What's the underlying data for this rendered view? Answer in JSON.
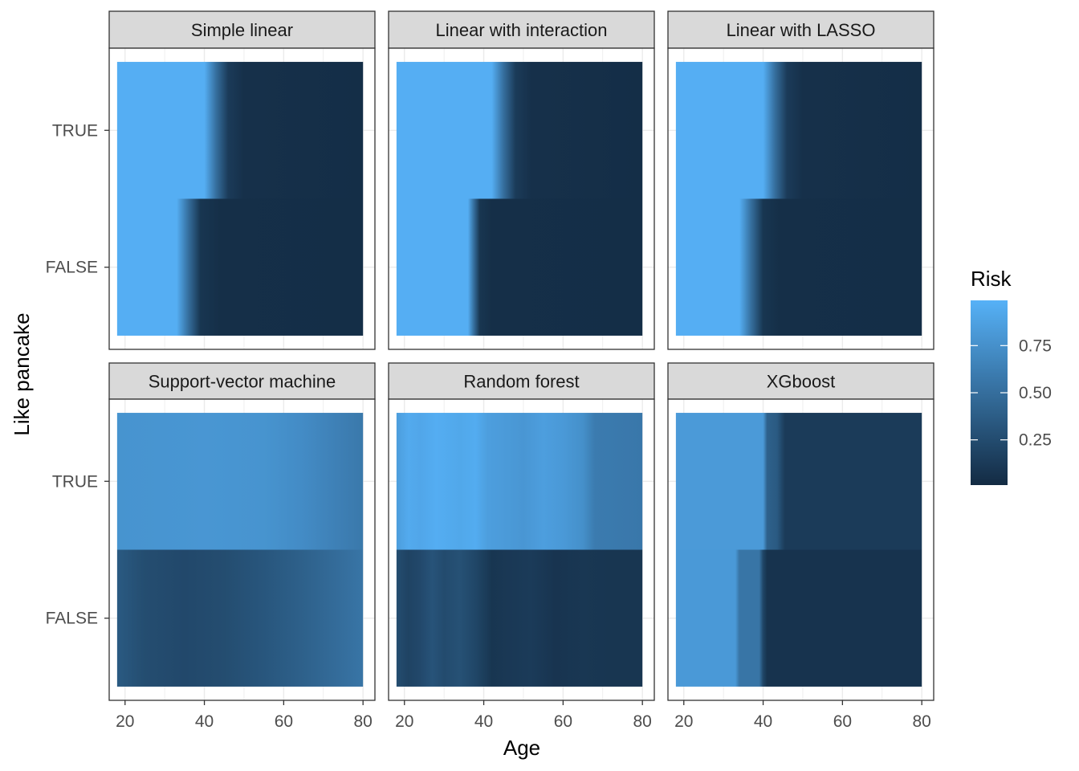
{
  "chart_data": {
    "type": "heatmap",
    "xlabel": "Age",
    "ylabel": "Like pancake",
    "xlim": [
      16,
      83
    ],
    "x_ticks": [
      20,
      40,
      60,
      80
    ],
    "y_categories": [
      "FALSE",
      "TRUE"
    ],
    "x_range": [
      18,
      80
    ],
    "grid": true,
    "legend": {
      "title": "Risk",
      "position": "right",
      "range": [
        0.0,
        1.0
      ],
      "ticks": [
        0.25,
        0.5,
        0.75
      ],
      "tick_labels": [
        "0.25",
        "0.50",
        "0.75"
      ],
      "low_color": "#132B43",
      "high_color": "#56B1F7"
    },
    "panels": [
      {
        "title": "Simple linear",
        "rows": {
          "TRUE": [
            [
              18,
              0.98
            ],
            [
              40,
              0.98
            ],
            [
              43,
              0.5
            ],
            [
              46,
              0.12
            ],
            [
              50,
              0.04
            ],
            [
              80,
              0.02
            ]
          ],
          "FALSE": [
            [
              18,
              0.98
            ],
            [
              33,
              0.98
            ],
            [
              36,
              0.5
            ],
            [
              39,
              0.08
            ],
            [
              44,
              0.03
            ],
            [
              80,
              0.02
            ]
          ]
        }
      },
      {
        "title": "Linear with interaction",
        "rows": {
          "TRUE": [
            [
              18,
              0.98
            ],
            [
              42,
              0.98
            ],
            [
              45,
              0.5
            ],
            [
              48,
              0.12
            ],
            [
              52,
              0.04
            ],
            [
              80,
              0.02
            ]
          ],
          "FALSE": [
            [
              18,
              0.98
            ],
            [
              36,
              0.98
            ],
            [
              37.5,
              0.5
            ],
            [
              39,
              0.08
            ],
            [
              42,
              0.03
            ],
            [
              80,
              0.02
            ]
          ]
        }
      },
      {
        "title": "Linear with LASSO",
        "rows": {
          "TRUE": [
            [
              18,
              0.98
            ],
            [
              40,
              0.98
            ],
            [
              43,
              0.5
            ],
            [
              46,
              0.12
            ],
            [
              50,
              0.04
            ],
            [
              80,
              0.02
            ]
          ],
          "FALSE": [
            [
              18,
              0.98
            ],
            [
              34,
              0.98
            ],
            [
              37,
              0.5
            ],
            [
              40,
              0.08
            ],
            [
              44,
              0.03
            ],
            [
              80,
              0.02
            ]
          ]
        }
      },
      {
        "title": "Support-vector machine",
        "rows": {
          "TRUE": [
            [
              18,
              0.78
            ],
            [
              40,
              0.8
            ],
            [
              55,
              0.78
            ],
            [
              65,
              0.72
            ],
            [
              75,
              0.62
            ],
            [
              80,
              0.58
            ]
          ],
          "FALSE": [
            [
              18,
              0.35
            ],
            [
              25,
              0.25
            ],
            [
              35,
              0.22
            ],
            [
              45,
              0.25
            ],
            [
              55,
              0.32
            ],
            [
              65,
              0.4
            ],
            [
              75,
              0.5
            ],
            [
              80,
              0.55
            ]
          ]
        }
      },
      {
        "title": "Random forest",
        "rows": {
          "TRUE": [
            [
              18,
              0.85
            ],
            [
              21,
              0.95
            ],
            [
              24,
              0.92
            ],
            [
              28,
              0.97
            ],
            [
              34,
              0.93
            ],
            [
              38,
              0.96
            ],
            [
              41,
              0.86
            ],
            [
              46,
              0.83
            ],
            [
              50,
              0.8
            ],
            [
              55,
              0.86
            ],
            [
              60,
              0.82
            ],
            [
              65,
              0.75
            ],
            [
              68,
              0.6
            ],
            [
              80,
              0.57
            ]
          ],
          "FALSE": [
            [
              18,
              0.25
            ],
            [
              21,
              0.18
            ],
            [
              24,
              0.22
            ],
            [
              27,
              0.3
            ],
            [
              30,
              0.24
            ],
            [
              34,
              0.28
            ],
            [
              38,
              0.2
            ],
            [
              42,
              0.08
            ],
            [
              46,
              0.1
            ],
            [
              52,
              0.12
            ],
            [
              58,
              0.07
            ],
            [
              65,
              0.09
            ],
            [
              72,
              0.08
            ],
            [
              80,
              0.08
            ]
          ]
        }
      },
      {
        "title": "XGboost",
        "rows": {
          "TRUE": [
            [
              18,
              0.83
            ],
            [
              40,
              0.83
            ],
            [
              41,
              0.4
            ],
            [
              43.5,
              0.35
            ],
            [
              45.5,
              0.12
            ],
            [
              80,
              0.12
            ]
          ],
          "FALSE": [
            [
              18,
              0.82
            ],
            [
              33,
              0.82
            ],
            [
              34,
              0.55
            ],
            [
              39,
              0.55
            ],
            [
              40,
              0.2
            ],
            [
              41,
              0.06
            ],
            [
              80,
              0.06
            ]
          ]
        }
      }
    ]
  }
}
